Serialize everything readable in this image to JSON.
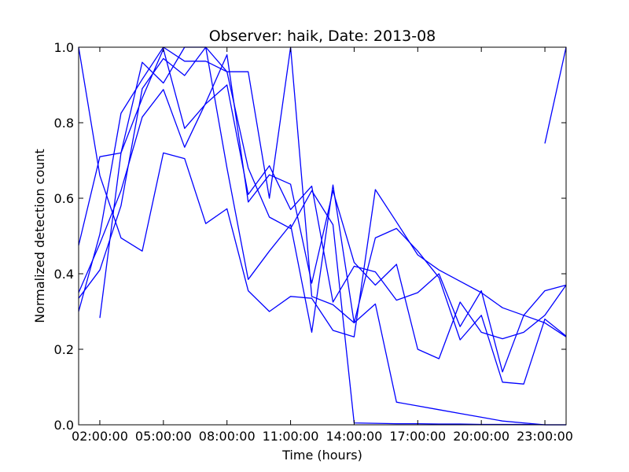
{
  "chart_data": {
    "type": "line",
    "title": "Observer: haik, Date: 2013-08",
    "xlabel": "Time (hours)",
    "ylabel": "Normalized detection count",
    "xlim": [
      1,
      24
    ],
    "ylim": [
      0.0,
      1.0
    ],
    "x_ticks": [
      {
        "value": 2,
        "label": "02:00:00"
      },
      {
        "value": 5,
        "label": "05:00:00"
      },
      {
        "value": 8,
        "label": "08:00:00"
      },
      {
        "value": 11,
        "label": "11:00:00"
      },
      {
        "value": 14,
        "label": "14:00:00"
      },
      {
        "value": 17,
        "label": "17:00:00"
      },
      {
        "value": 20,
        "label": "20:00:00"
      },
      {
        "value": 23,
        "label": "23:00:00"
      }
    ],
    "y_ticks": [
      {
        "value": 0.0,
        "label": "0.0"
      },
      {
        "value": 0.2,
        "label": "0.2"
      },
      {
        "value": 0.4,
        "label": "0.4"
      },
      {
        "value": 0.6,
        "label": "0.6"
      },
      {
        "value": 0.8,
        "label": "0.8"
      },
      {
        "value": 1.0,
        "label": "1.0"
      }
    ],
    "grid": false,
    "legend": "none",
    "line_color": "#0000ff",
    "series": [
      {
        "x": [
          1,
          2,
          3,
          4,
          5,
          6,
          7,
          8,
          9,
          10,
          11,
          12,
          13,
          14,
          15,
          16,
          17,
          18,
          19,
          20,
          21,
          22,
          23,
          24
        ],
        "values": [
          1.0,
          0.66,
          0.495,
          0.46,
          0.72,
          0.705,
          0.533,
          0.572,
          0.355,
          0.3,
          0.34,
          0.335,
          0.25,
          0.233,
          0.623,
          0.537,
          0.45,
          0.41,
          0.38,
          0.35,
          0.31,
          0.29,
          0.27,
          0.233
        ]
      },
      {
        "x": [
          1,
          2,
          3,
          4,
          5,
          6,
          7,
          8,
          9,
          10,
          11,
          12,
          13,
          14,
          15,
          16,
          17,
          18,
          19,
          20,
          21,
          22,
          23,
          24
        ],
        "values": [
          0.475,
          0.71,
          0.72,
          0.96,
          0.905,
          1.0,
          1.0,
          0.68,
          0.385,
          0.46,
          0.53,
          0.245,
          0.635,
          0.27,
          0.495,
          0.52,
          0.46,
          0.39,
          0.225,
          0.29,
          0.113,
          0.108,
          0.28,
          0.235
        ]
      },
      {
        "x": [
          1,
          2,
          3,
          4,
          5,
          6,
          7,
          8,
          9,
          10,
          11,
          12,
          13,
          14,
          15,
          16,
          17,
          18,
          19,
          20,
          21,
          22,
          23,
          24
        ],
        "values": [
          0.335,
          0.41,
          0.58,
          0.89,
          0.97,
          0.925,
          1.0,
          0.935,
          0.935,
          0.6,
          1.0,
          0.34,
          0.318,
          0.27,
          0.32,
          0.06,
          0.05,
          0.04,
          0.03,
          0.02,
          0.01,
          0.005,
          0.0,
          0.0
        ]
      },
      {
        "x": [
          1,
          2,
          3,
          4,
          5,
          6,
          7,
          8,
          9,
          10,
          11,
          12,
          13,
          14,
          15,
          16,
          17,
          18,
          19,
          20,
          21,
          22,
          23,
          24
        ],
        "values": [
          0.3,
          0.505,
          0.825,
          0.915,
          1.0,
          0.963,
          0.963,
          0.935,
          0.68,
          0.55,
          0.52,
          0.62,
          0.53,
          0.005,
          0.004,
          0.003,
          0.003,
          0.002,
          0.002,
          0.001,
          0.001,
          0.001,
          0.0,
          0.0
        ]
      },
      {
        "x": [
          1,
          2,
          3,
          4,
          5,
          6,
          7,
          8,
          9,
          10,
          11,
          12,
          13,
          14,
          15,
          16,
          17,
          18,
          19,
          20,
          21,
          22,
          23,
          24
        ],
        "values": [
          0.35,
          0.48,
          0.62,
          0.815,
          0.888,
          0.735,
          0.853,
          0.98,
          0.59,
          0.662,
          0.637,
          0.375,
          0.62,
          0.43,
          0.37,
          0.425,
          0.2,
          0.175,
          0.325,
          0.245,
          0.228,
          0.245,
          0.29,
          0.37
        ]
      },
      {
        "x": [
          2,
          3,
          4,
          5,
          6,
          7,
          8,
          9,
          10,
          11,
          12,
          13,
          14,
          15,
          16,
          17,
          18,
          19,
          20,
          21,
          22,
          23,
          24
        ],
        "values": [
          0.283,
          0.72,
          0.865,
          0.995,
          0.785,
          0.85,
          0.9,
          0.61,
          0.686,
          0.57,
          0.632,
          0.325,
          0.42,
          0.405,
          0.33,
          0.35,
          0.4,
          0.26,
          0.355,
          0.14,
          0.29,
          0.355,
          0.37
        ]
      },
      {
        "x": [
          23,
          24
        ],
        "values": [
          0.745,
          1.0
        ]
      }
    ]
  }
}
